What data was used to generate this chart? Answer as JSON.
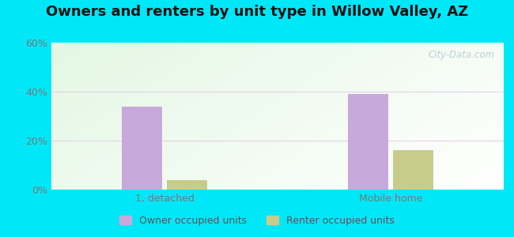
{
  "title": "Owners and renters by unit type in Willow Valley, AZ",
  "categories": [
    "1, detached",
    "Mobile home"
  ],
  "owner_values": [
    34.0,
    39.0
  ],
  "renter_values": [
    4.0,
    16.0
  ],
  "owner_color": "#c9a8dc",
  "renter_color": "#c8cc8a",
  "ylim": [
    0,
    60
  ],
  "yticks": [
    0,
    20,
    40,
    60
  ],
  "ytick_labels": [
    "0%",
    "20%",
    "40%",
    "60%"
  ],
  "background_outer": "#00e8f8",
  "legend_owner": "Owner occupied units",
  "legend_renter": "Renter occupied units",
  "bar_width": 0.18,
  "watermark": "City-Data.com",
  "grid_color": "#e8c0e0",
  "title_fontsize": 13
}
